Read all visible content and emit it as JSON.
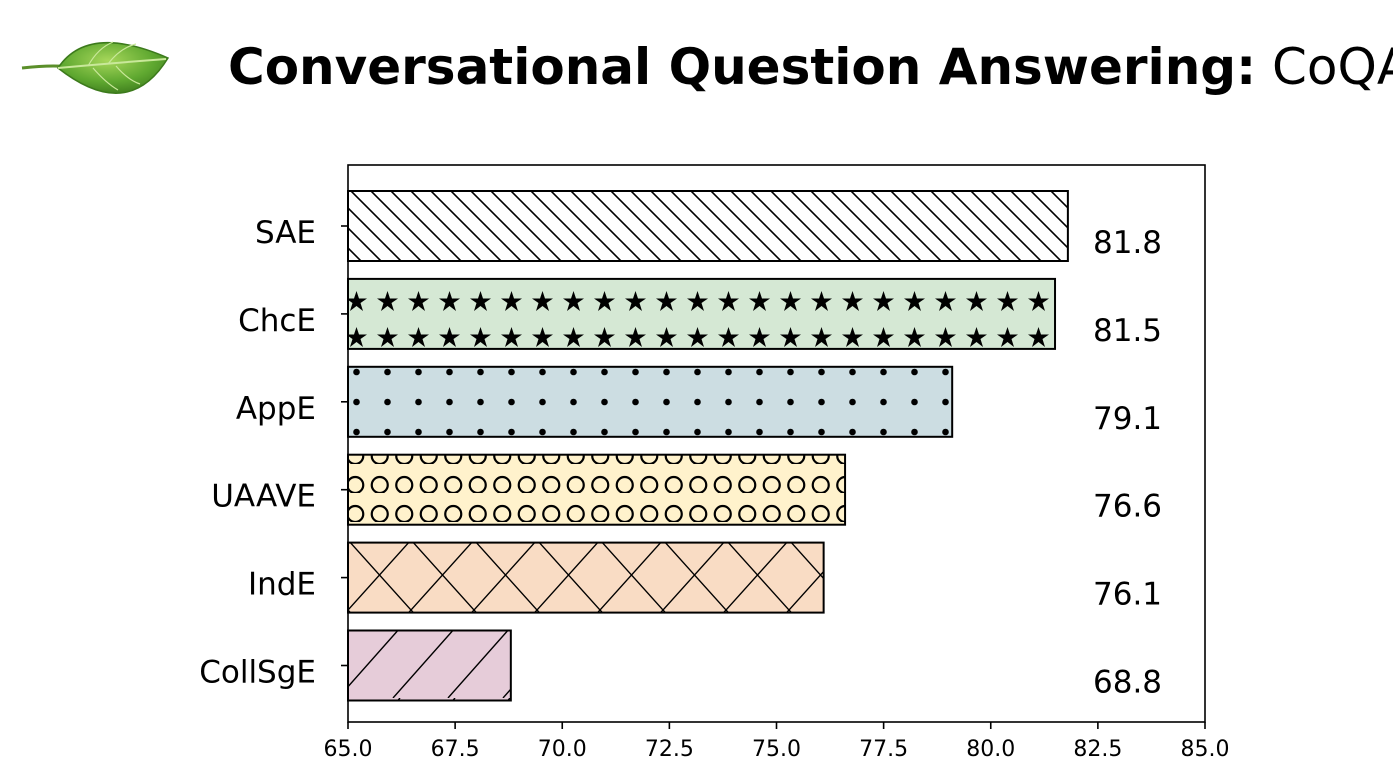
{
  "header": {
    "title_bold": "Conversational Question Answering:",
    "title_light": "CoQA",
    "logo_icon": "leaf-icon"
  },
  "chart_data": {
    "type": "bar",
    "orientation": "horizontal",
    "categories": [
      "SAE",
      "ChcE",
      "AppE",
      "UAAVE",
      "IndE",
      "CollSgE"
    ],
    "values": [
      81.8,
      81.5,
      79.1,
      76.6,
      76.1,
      68.8
    ],
    "value_labels": [
      "81.8",
      "81.5",
      "79.1",
      "76.6",
      "76.1",
      "68.8"
    ],
    "xlim": [
      65.0,
      85.0
    ],
    "xticks": [
      65.0,
      67.5,
      70.0,
      72.5,
      75.0,
      77.5,
      80.0,
      82.5,
      85.0
    ],
    "xtick_labels": [
      "65.0",
      "67.5",
      "70.0",
      "72.5",
      "75.0",
      "77.5",
      "80.0",
      "82.5",
      "85.0"
    ],
    "title": "",
    "xlabel": "",
    "ylabel": "",
    "grid": false,
    "bar_fills": [
      "#ffffff",
      "#d5e8d4",
      "#ccdde2",
      "#fff2cc",
      "#f9dcc4",
      "#e6ccd9"
    ],
    "bar_hatches": [
      "backslash",
      "star",
      "dot",
      "circle",
      "cross",
      "slash"
    ]
  }
}
